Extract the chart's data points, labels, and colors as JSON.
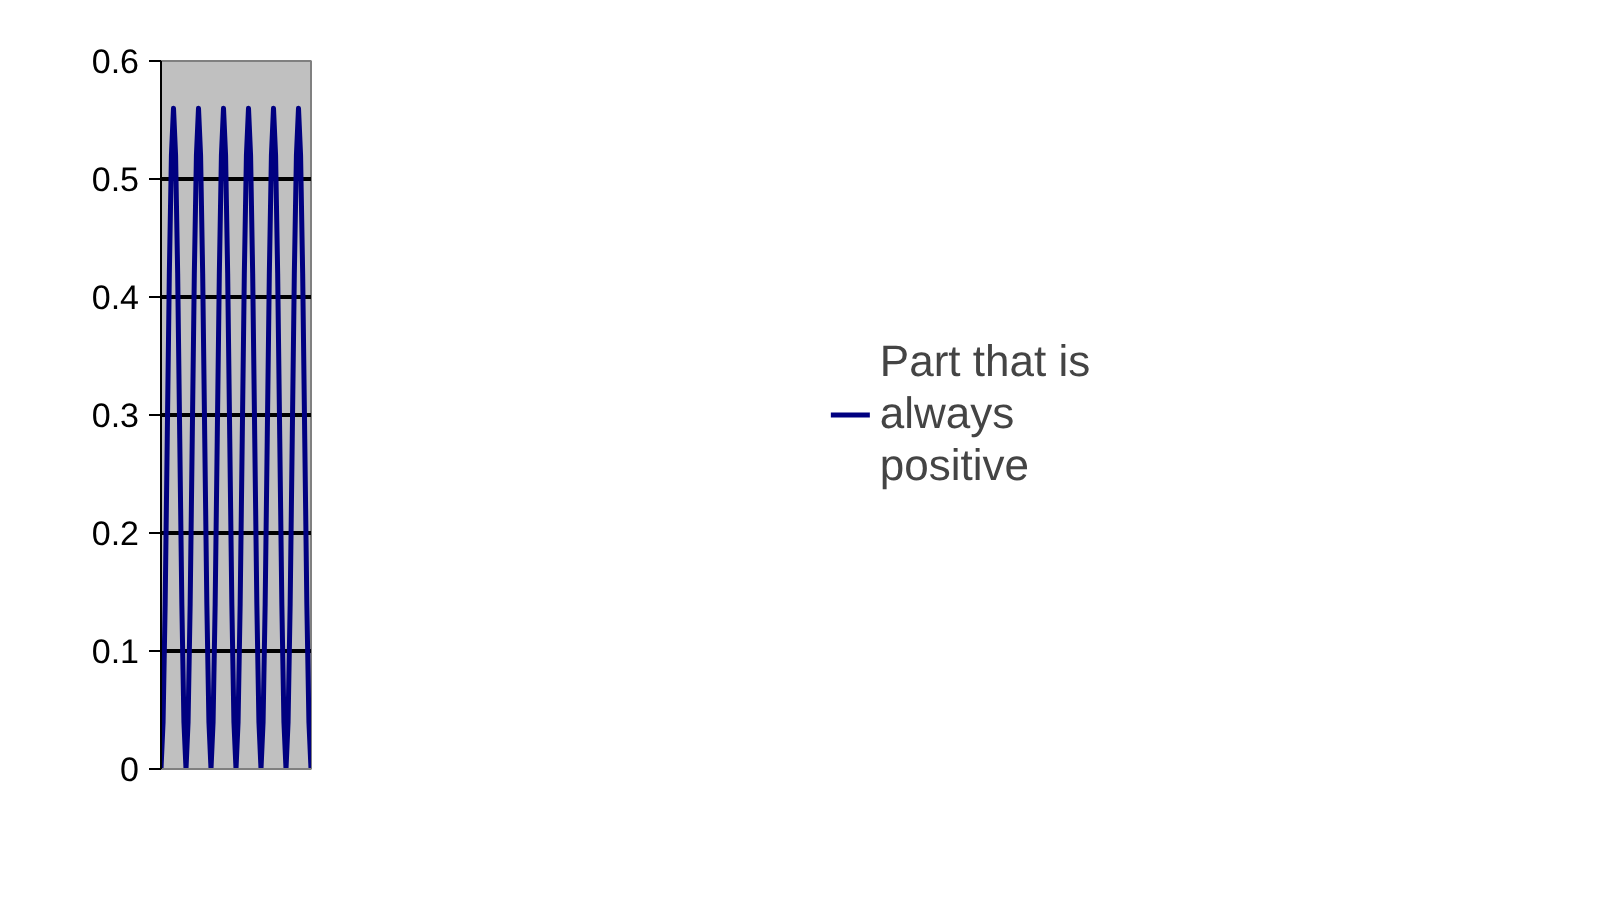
{
  "chart_data": {
    "type": "line",
    "categories": [
      null,
      null,
      null,
      null,
      null,
      null,
      null,
      null,
      null,
      null,
      null,
      null,
      null,
      null,
      null,
      null,
      null,
      null,
      null,
      null,
      null,
      null,
      null,
      null,
      null,
      null,
      null,
      null,
      null,
      null,
      null,
      null,
      null,
      null,
      null,
      null,
      null,
      null,
      null,
      null,
      null,
      null,
      null,
      null,
      null,
      null,
      null,
      null,
      null,
      null,
      null,
      null,
      null,
      null,
      null,
      null,
      null,
      null,
      null,
      null,
      null,
      null,
      null,
      null,
      null,
      null,
      null,
      null,
      null,
      null,
      null,
      null,
      null
    ],
    "series": [
      {
        "name": "Part that is always positive",
        "color": "#000080",
        "values": [
          0,
          0.04,
          0.14,
          0.28,
          0.42,
          0.52,
          0.56,
          0.52,
          0.42,
          0.28,
          0.14,
          0.04,
          0,
          0.04,
          0.14,
          0.28,
          0.42,
          0.52,
          0.56,
          0.52,
          0.42,
          0.28,
          0.14,
          0.04,
          0,
          0.04,
          0.14,
          0.28,
          0.42,
          0.52,
          0.56,
          0.52,
          0.42,
          0.28,
          0.14,
          0.04,
          0,
          0.04,
          0.14,
          0.28,
          0.42,
          0.52,
          0.56,
          0.52,
          0.42,
          0.28,
          0.14,
          0.04,
          0,
          0.04,
          0.14,
          0.28,
          0.42,
          0.52,
          0.56,
          0.52,
          0.42,
          0.28,
          0.14,
          0.04,
          0,
          0.04,
          0.14,
          0.28,
          0.42,
          0.52,
          0.56,
          0.52,
          0.42,
          0.28,
          0.14,
          0.04,
          0
        ]
      }
    ],
    "ylim": [
      0,
      0.6
    ],
    "yticks": [
      0,
      0.1,
      0.2,
      0.3,
      0.4,
      0.5,
      0.6
    ],
    "grid": "y",
    "legend": "right",
    "tick_labels": "y"
  }
}
